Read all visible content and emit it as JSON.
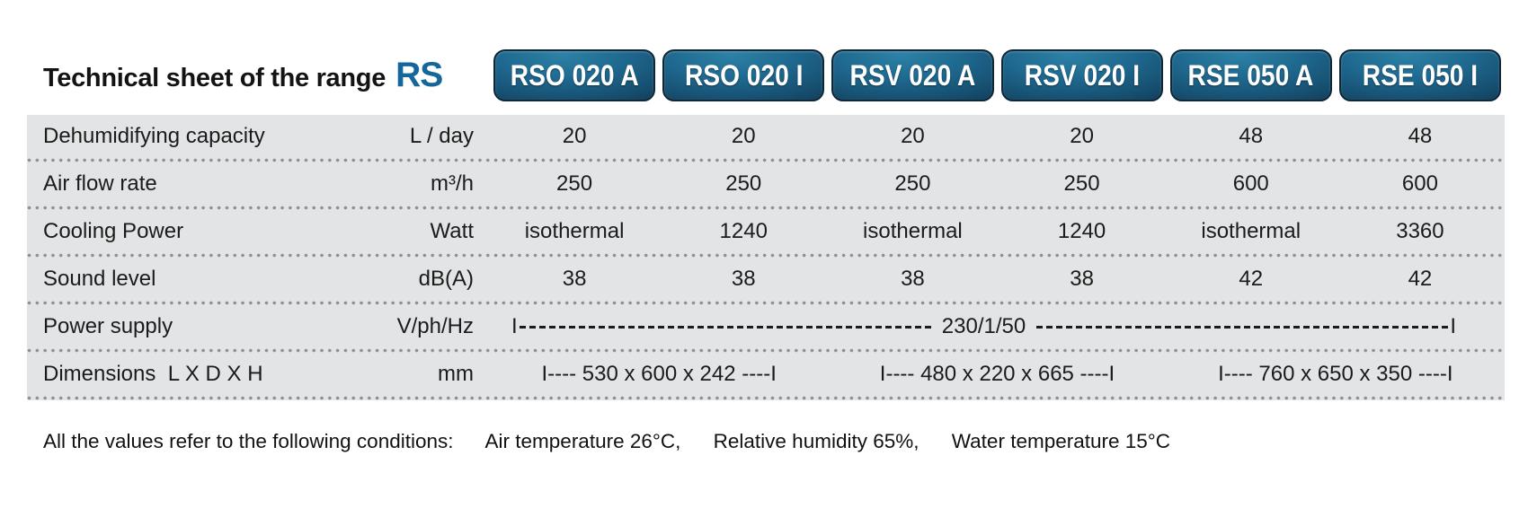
{
  "title": {
    "text": "Technical sheet of the range",
    "range_code": "RS"
  },
  "models": [
    "RSO 020 A",
    "RSO 020 I",
    "RSV 020 A",
    "RSV 020 I",
    "RSE 050 A",
    "RSE 050 I"
  ],
  "rows": [
    {
      "label": "Dehumidifying capacity",
      "unit": "L / day",
      "values": [
        "20",
        "20",
        "20",
        "20",
        "48",
        "48"
      ]
    },
    {
      "label": "Air flow rate",
      "unit": "m³/h",
      "values": [
        "250",
        "250",
        "250",
        "250",
        "600",
        "600"
      ]
    },
    {
      "label": "Cooling Power",
      "unit": "Watt",
      "values": [
        "isothermal",
        "1240",
        "isothermal",
        "1240",
        "isothermal",
        "3360"
      ]
    },
    {
      "label": "Sound level",
      "unit": "dB(A)",
      "values": [
        "38",
        "38",
        "38",
        "38",
        "42",
        "42"
      ]
    },
    {
      "label": "Power supply",
      "unit": "V/ph/Hz",
      "left_end": "I",
      "value": "230/1/50",
      "right_end": "I"
    },
    {
      "label": "Dimensions  L X D X H",
      "unit": "mm",
      "values": [
        "I---- 530 x 600 x 242 ----I",
        "I---- 480 x 220 x 665 ----I",
        "I---- 760 x 650 x 350 ----I"
      ]
    }
  ],
  "footer": {
    "intro": "All the values refer to the following conditions:",
    "conditions": [
      "Air temperature 26°C,",
      "Relative humidity 65%,",
      "Water temperature 15°C"
    ]
  },
  "colors": {
    "accent_blue": "#15679b",
    "badge_teal_light": "#2d81a6",
    "badge_navy_dark": "#0d2a41",
    "row_background": "#e3e4e5",
    "dot_gray": "#8e9093",
    "text": "#1b1b1b"
  }
}
